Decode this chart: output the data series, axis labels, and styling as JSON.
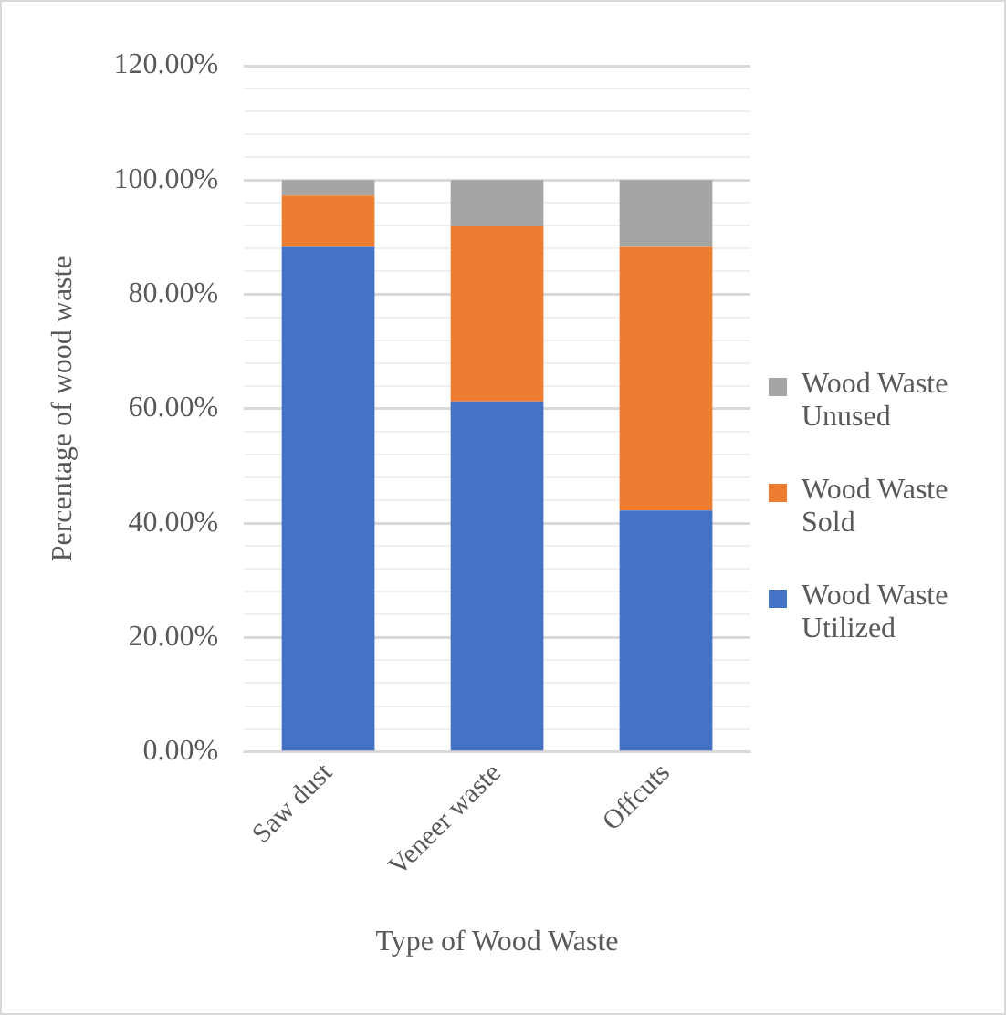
{
  "chart_data": {
    "type": "bar",
    "stacked": true,
    "xlabel": "Type of Wood Waste",
    "ylabel": "Percentage of wood waste",
    "categories": [
      "Saw dust",
      "Veneer waste",
      "Offcuts"
    ],
    "series": [
      {
        "name": "Wood Waste Utilized",
        "color": "#4472c4",
        "values": [
          88.3,
          61.3,
          42.2
        ]
      },
      {
        "name": "Wood Waste Sold",
        "color": "#ed7d31",
        "values": [
          9,
          30.6,
          46.1
        ]
      },
      {
        "name": "Wood Waste Unused",
        "color": "#a5a5a5",
        "values": [
          2.7,
          8.1,
          11.7
        ]
      }
    ],
    "ylim": [
      0,
      120
    ],
    "yticks": [
      {
        "value": 0,
        "label": "0.00%"
      },
      {
        "value": 4,
        "label": null
      },
      {
        "value": 8,
        "label": null
      },
      {
        "value": 12,
        "label": null
      },
      {
        "value": 16,
        "label": null
      },
      {
        "value": 20,
        "label": "20.00%"
      },
      {
        "value": 24,
        "label": null
      },
      {
        "value": 28,
        "label": null
      },
      {
        "value": 32,
        "label": null
      },
      {
        "value": 36,
        "label": null
      },
      {
        "value": 40,
        "label": "40.00%"
      },
      {
        "value": 44,
        "label": null
      },
      {
        "value": 48,
        "label": null
      },
      {
        "value": 52,
        "label": null
      },
      {
        "value": 56,
        "label": null
      },
      {
        "value": 60,
        "label": "60.00%"
      },
      {
        "value": 64,
        "label": null
      },
      {
        "value": 68,
        "label": null
      },
      {
        "value": 72,
        "label": null
      },
      {
        "value": 76,
        "label": null
      },
      {
        "value": 80,
        "label": "80.00%"
      },
      {
        "value": 84,
        "label": null
      },
      {
        "value": 88,
        "label": null
      },
      {
        "value": 92,
        "label": null
      },
      {
        "value": 96,
        "label": null
      },
      {
        "value": 100,
        "label": "100.00%"
      },
      {
        "value": 104,
        "label": null
      },
      {
        "value": 108,
        "label": null
      },
      {
        "value": 112,
        "label": null
      },
      {
        "value": 116,
        "label": null
      },
      {
        "value": 120,
        "label": "120.00%"
      }
    ],
    "grid": true,
    "legend": "right"
  }
}
